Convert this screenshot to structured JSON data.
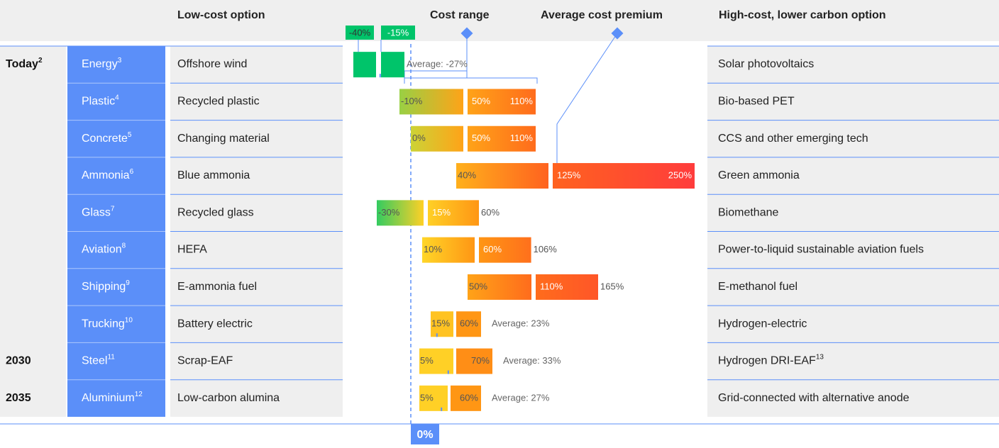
{
  "headers": {
    "low_option": "Low-cost option",
    "cost_range": "Cost range",
    "average_premium": "Average cost premium",
    "high_option": "High-cost, lower carbon option"
  },
  "zero_label": "0%",
  "rows": [
    {
      "period": "Today",
      "period_note": "2",
      "sector": "Energy",
      "sector_note": "3",
      "low_option": "Offshore wind",
      "high_option": "Solar photovoltaics",
      "values": [
        -40,
        -15
      ],
      "value_labels": [
        "-40%",
        "-15%"
      ],
      "label_position": "above",
      "average": -27,
      "average_label": "Average: -27%"
    },
    {
      "sector": "Plastic",
      "sector_note": "4",
      "low_option": "Recycled plastic",
      "high_option": "Bio-based PET",
      "values": [
        -10,
        50,
        110
      ],
      "value_labels": [
        "-10%",
        "50%",
        "110%"
      ]
    },
    {
      "sector": "Concrete",
      "sector_note": "5",
      "low_option": "Changing material",
      "high_option": "CCS and other emerging tech",
      "values": [
        0,
        50,
        110
      ],
      "value_labels": [
        "0%",
        "50%",
        "110%"
      ]
    },
    {
      "sector": "Ammonia",
      "sector_note": "6",
      "low_option": "Blue ammonia",
      "high_option": "Green ammonia",
      "values": [
        40,
        125,
        250
      ],
      "value_labels": [
        "40%",
        "125%",
        "250%"
      ]
    },
    {
      "sector": "Glass",
      "sector_note": "7",
      "low_option": "Recycled glass",
      "high_option": "Biomethane",
      "values": [
        -30,
        15,
        60
      ],
      "value_labels": [
        "-30%",
        "15%",
        "60%"
      ]
    },
    {
      "sector": "Aviation",
      "sector_note": "8",
      "low_option": "HEFA",
      "high_option": "Power-to-liquid sustainable aviation fuels",
      "values": [
        10,
        60,
        106
      ],
      "value_labels": [
        "10%",
        "60%",
        "106%"
      ]
    },
    {
      "sector": "Shipping",
      "sector_note": "9",
      "low_option": "E-ammonia fuel",
      "high_option": "E-methanol fuel",
      "values": [
        50,
        110,
        165
      ],
      "value_labels": [
        "50%",
        "110%",
        "165%"
      ]
    },
    {
      "sector": "Trucking",
      "sector_note": "10",
      "low_option": "Battery electric",
      "high_option": "Hydrogen-electric",
      "values": [
        15,
        60
      ],
      "value_labels": [
        "15%",
        "60%"
      ],
      "average": 23,
      "average_label": "Average: 23%"
    },
    {
      "period": "2030",
      "sector": "Steel",
      "sector_note": "11",
      "low_option": "Scrap-EAF",
      "high_option": "Hydrogen DRI-EAF",
      "high_option_note": "13",
      "values": [
        5,
        70
      ],
      "value_labels": [
        "5%",
        "70%"
      ],
      "average": 33,
      "average_label": "Average: 33%"
    },
    {
      "period": "2035",
      "sector": "Aluminium",
      "sector_note": "12",
      "low_option": "Low-carbon alumina",
      "high_option": "Grid-connected with alternative anode",
      "values": [
        5,
        60
      ],
      "value_labels": [
        "5%",
        "60%"
      ],
      "average": 27,
      "average_label": "Average: 27%"
    }
  ]
}
